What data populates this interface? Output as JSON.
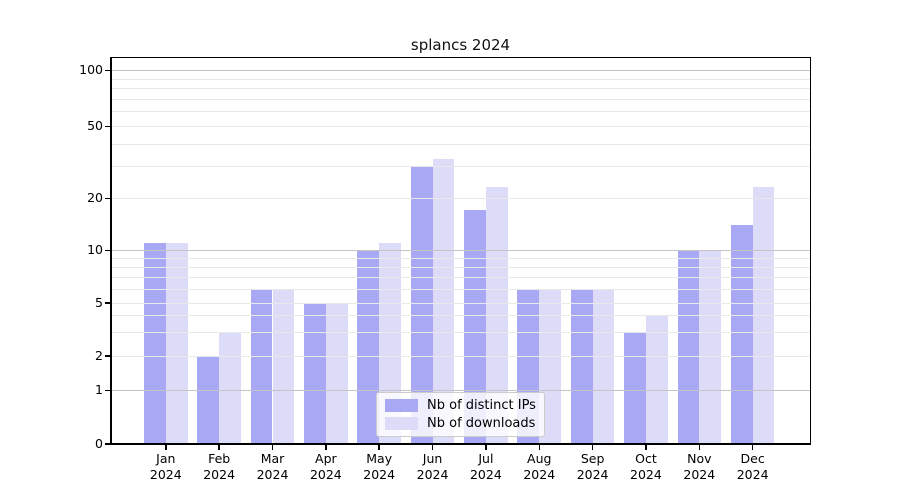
{
  "chart_data": {
    "type": "bar",
    "title": "splancs 2024",
    "categories": [
      "Jan",
      "Feb",
      "Mar",
      "Apr",
      "May",
      "Jun",
      "Jul",
      "Aug",
      "Sep",
      "Oct",
      "Nov",
      "Dec"
    ],
    "x_year_label": "2024",
    "series": [
      {
        "name": "Nb of distinct IPs",
        "color": "#a8a8f5",
        "values": [
          11,
          2,
          6,
          5,
          10,
          30,
          17,
          6,
          6,
          3,
          10,
          14
        ]
      },
      {
        "name": "Nb of downloads",
        "color": "#dcdcf8",
        "values": [
          11,
          3,
          6,
          5,
          11,
          33,
          23,
          6,
          6,
          4,
          10,
          23
        ]
      }
    ],
    "y_axis": {
      "scale": "log-like",
      "tick_labels": [
        100,
        50,
        20,
        10,
        5,
        2,
        1,
        0
      ],
      "range": [
        0,
        100
      ]
    },
    "grid": "on",
    "legend_position": "lower center"
  },
  "colors": {
    "background": "#ffffff",
    "axis": "#000000",
    "grid_minor": "#e9e9e9",
    "grid_major": "#c4c4c4",
    "legend_border": "#cccccc"
  }
}
